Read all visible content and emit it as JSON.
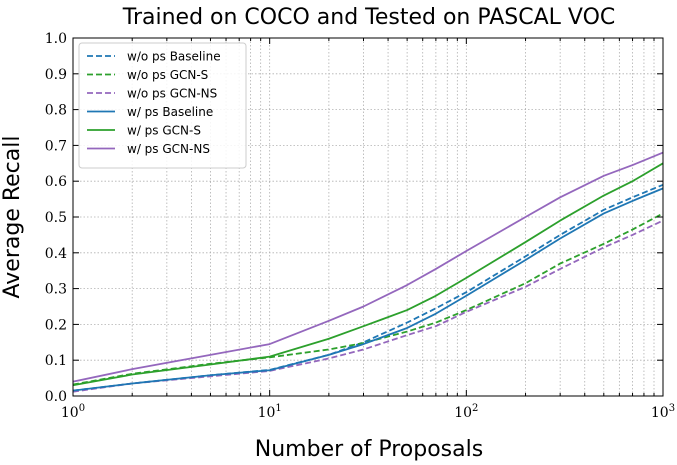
{
  "chart_data": {
    "type": "line",
    "title": "Trained on COCO and Tested on PASCAL VOC",
    "xlabel": "Number of Proposals",
    "ylabel": "Average Recall",
    "xscale": "log",
    "xlim": [
      1,
      1000
    ],
    "ylim": [
      0,
      1.0
    ],
    "grid": true,
    "legend_position": "top-left",
    "x_ticks": [
      {
        "value": 1,
        "base": "10",
        "exp": "0"
      },
      {
        "value": 10,
        "base": "10",
        "exp": "1"
      },
      {
        "value": 100,
        "base": "10",
        "exp": "2"
      },
      {
        "value": 1000,
        "base": "10",
        "exp": "3"
      }
    ],
    "y_ticks": [
      "0.0",
      "0.1",
      "0.2",
      "0.3",
      "0.4",
      "0.5",
      "0.6",
      "0.7",
      "0.8",
      "0.9",
      "1.0"
    ],
    "x": [
      1,
      2,
      5,
      10,
      20,
      30,
      50,
      70,
      100,
      200,
      300,
      500,
      700,
      1000
    ],
    "series": [
      {
        "name": "w/o ps Baseline",
        "color": "#1f77b4",
        "dash": "dashed",
        "values": [
          0.015,
          0.035,
          0.058,
          0.073,
          0.115,
          0.15,
          0.205,
          0.245,
          0.29,
          0.39,
          0.45,
          0.52,
          0.555,
          0.59
        ]
      },
      {
        "name": "w/o ps GCN-S",
        "color": "#2ca02c",
        "dash": "dashed",
        "values": [
          0.032,
          0.062,
          0.09,
          0.108,
          0.13,
          0.148,
          0.18,
          0.205,
          0.24,
          0.315,
          0.37,
          0.425,
          0.465,
          0.51
        ]
      },
      {
        "name": "w/o ps GCN-NS",
        "color": "#9467bd",
        "dash": "dashed",
        "values": [
          0.012,
          0.035,
          0.055,
          0.07,
          0.105,
          0.13,
          0.17,
          0.195,
          0.235,
          0.305,
          0.355,
          0.415,
          0.45,
          0.49
        ]
      },
      {
        "name": "w/ ps Baseline",
        "color": "#1f77b4",
        "dash": "solid",
        "values": [
          0.015,
          0.035,
          0.058,
          0.072,
          0.115,
          0.145,
          0.19,
          0.23,
          0.28,
          0.38,
          0.44,
          0.51,
          0.545,
          0.58
        ]
      },
      {
        "name": "w/ ps GCN-S",
        "color": "#2ca02c",
        "dash": "solid",
        "values": [
          0.03,
          0.06,
          0.088,
          0.11,
          0.16,
          0.195,
          0.24,
          0.28,
          0.33,
          0.43,
          0.49,
          0.56,
          0.6,
          0.65
        ]
      },
      {
        "name": "w/ ps GCN-NS",
        "color": "#9467bd",
        "dash": "solid",
        "values": [
          0.04,
          0.075,
          0.115,
          0.145,
          0.21,
          0.25,
          0.31,
          0.355,
          0.405,
          0.5,
          0.555,
          0.615,
          0.645,
          0.68
        ]
      }
    ]
  }
}
